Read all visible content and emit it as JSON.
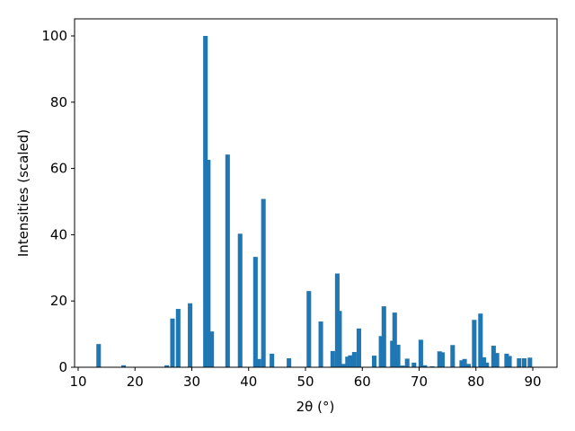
{
  "chart_data": {
    "type": "bar",
    "xlabel": "2θ (°)",
    "ylabel": "Intensities (scaled)",
    "x": [
      13.6,
      18,
      25.6,
      26.6,
      27.6,
      29.7,
      32.4,
      32.9,
      33.5,
      36.3,
      38.5,
      41.2,
      41.8,
      42.6,
      44.1,
      47.1,
      50.6,
      52.7,
      54.8,
      55.6,
      56.0,
      56.7,
      57.4,
      57.9,
      58.6,
      59.4,
      62.1,
      63.3,
      63.8,
      65.3,
      65.7,
      66.3,
      67.1,
      67.9,
      69.1,
      70.3,
      71.0,
      72.3,
      73.6,
      74.1,
      75.9,
      77.5,
      78.0,
      78.7,
      79.7,
      80.8,
      81.4,
      81.9,
      83.1,
      83.7,
      85.4,
      85.9,
      87.6,
      88.5,
      89.5
    ],
    "values": [
      7,
      0.6,
      0.6,
      14.7,
      17.6,
      19.3,
      100,
      62.6,
      10.8,
      64.2,
      40.3,
      33.3,
      2.5,
      50.8,
      4.1,
      2.7,
      23,
      13.8,
      4.9,
      28.3,
      17,
      1,
      3.2,
      3.6,
      4.6,
      11.7,
      3.5,
      9.4,
      18.4,
      8,
      16.5,
      6.8,
      0.5,
      2.6,
      1.4,
      8.3,
      0.6,
      0.3,
      4.8,
      4.5,
      6.7,
      2.1,
      2.5,
      1,
      14.3,
      16.2,
      3,
      1.4,
      6.5,
      4.3,
      4.1,
      3.4,
      2.7,
      2.7,
      2.9
    ],
    "bar_width": 0.8,
    "color": "#1f77b4",
    "xlim": [
      9.37,
      94.27
    ],
    "ylim": [
      0,
      105.15
    ],
    "xticks": [
      10,
      20,
      30,
      40,
      50,
      60,
      70,
      80,
      90
    ],
    "yticks": [
      0,
      20,
      40,
      60,
      80,
      100
    ]
  }
}
